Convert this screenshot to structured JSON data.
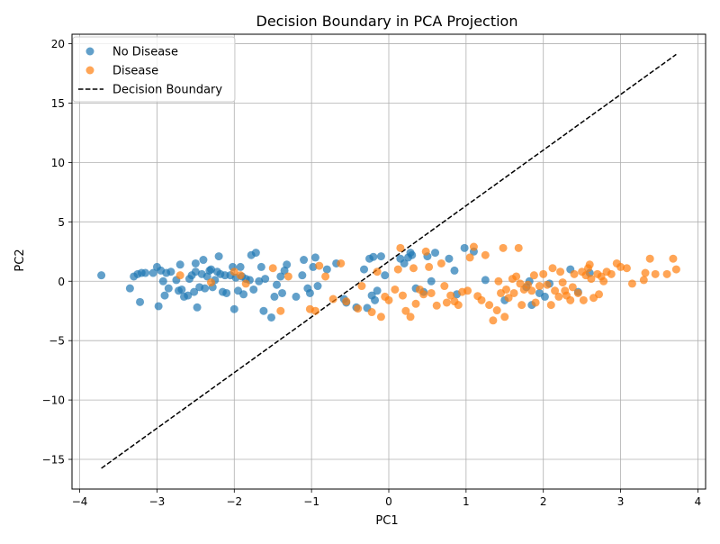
{
  "chart_data": {
    "type": "scatter",
    "title": "Decision Boundary in PCA Projection",
    "xlabel": "PC1",
    "ylabel": "PC2",
    "xlim": [
      -4.1,
      4.1
    ],
    "ylim": [
      -17.5,
      20.8
    ],
    "xticks": [
      -4,
      -3,
      -2,
      -1,
      0,
      1,
      2,
      3,
      4
    ],
    "yticks": [
      -15,
      -10,
      -5,
      0,
      5,
      10,
      15,
      20
    ],
    "grid": true,
    "legend_position": "top-left",
    "series": [
      {
        "name": "No Disease",
        "color": "#1f77b4",
        "points": [
          [
            -3.72,
            0.5
          ],
          [
            -3.35,
            -0.6
          ],
          [
            -3.3,
            0.4
          ],
          [
            -3.25,
            0.6
          ],
          [
            -3.22,
            -1.75
          ],
          [
            -3.2,
            0.7
          ],
          [
            -3.15,
            0.7
          ],
          [
            -3.05,
            0.7
          ],
          [
            -3.0,
            1.2
          ],
          [
            -2.98,
            -2.1
          ],
          [
            -2.95,
            0.9
          ],
          [
            -2.92,
            0.0
          ],
          [
            -2.9,
            -1.2
          ],
          [
            -2.88,
            0.7
          ],
          [
            -2.85,
            -0.6
          ],
          [
            -2.82,
            0.8
          ],
          [
            -2.75,
            0.1
          ],
          [
            -2.72,
            -0.8
          ],
          [
            -2.7,
            1.4
          ],
          [
            -2.68,
            -0.7
          ],
          [
            -2.65,
            -1.3
          ],
          [
            -2.6,
            -1.2
          ],
          [
            -2.58,
            0.2
          ],
          [
            -2.55,
            0.5
          ],
          [
            -2.52,
            -0.9
          ],
          [
            -2.5,
            0.8
          ],
          [
            -2.5,
            1.5
          ],
          [
            -2.48,
            -2.2
          ],
          [
            -2.45,
            -0.5
          ],
          [
            -2.42,
            0.6
          ],
          [
            -2.4,
            1.8
          ],
          [
            -2.38,
            -0.6
          ],
          [
            -2.35,
            0.4
          ],
          [
            -2.32,
            0.9
          ],
          [
            -2.3,
            1.0
          ],
          [
            -2.28,
            -0.5
          ],
          [
            -2.25,
            0.1
          ],
          [
            -2.22,
            0.8
          ],
          [
            -2.2,
            2.1
          ],
          [
            -2.18,
            0.6
          ],
          [
            -2.15,
            -0.9
          ],
          [
            -2.12,
            0.5
          ],
          [
            -2.1,
            -1.0
          ],
          [
            -2.05,
            0.5
          ],
          [
            -2.02,
            1.2
          ],
          [
            -2.0,
            -2.35
          ],
          [
            -1.98,
            0.3
          ],
          [
            -1.95,
            -0.8
          ],
          [
            -1.92,
            1.2
          ],
          [
            -1.9,
            0.4
          ],
          [
            -1.88,
            -1.1
          ],
          [
            -1.85,
            0.2
          ],
          [
            -1.8,
            0.1
          ],
          [
            -1.78,
            2.2
          ],
          [
            -1.75,
            -0.7
          ],
          [
            -1.72,
            2.4
          ],
          [
            -1.68,
            0.0
          ],
          [
            -1.65,
            1.2
          ],
          [
            -1.62,
            -2.5
          ],
          [
            -1.6,
            0.2
          ],
          [
            -1.52,
            -3.05
          ],
          [
            -1.48,
            -1.3
          ],
          [
            -1.45,
            -0.3
          ],
          [
            -1.4,
            0.4
          ],
          [
            -1.38,
            -1.0
          ],
          [
            -1.35,
            0.9
          ],
          [
            -1.32,
            1.4
          ],
          [
            -1.2,
            -1.3
          ],
          [
            -1.12,
            0.5
          ],
          [
            -1.1,
            1.8
          ],
          [
            -1.05,
            -0.6
          ],
          [
            -1.02,
            -1.0
          ],
          [
            -0.98,
            1.2
          ],
          [
            -0.95,
            2.0
          ],
          [
            -0.92,
            -0.4
          ],
          [
            -0.8,
            1.0
          ],
          [
            -0.68,
            1.5
          ],
          [
            -0.58,
            -1.5
          ],
          [
            -0.55,
            -1.8
          ],
          [
            -0.42,
            -2.2
          ],
          [
            -0.32,
            1.0
          ],
          [
            -0.28,
            -2.25
          ],
          [
            -0.25,
            1.9
          ],
          [
            -0.22,
            -1.2
          ],
          [
            -0.2,
            2.05
          ],
          [
            -0.18,
            -1.6
          ],
          [
            -0.15,
            -0.8
          ],
          [
            -0.1,
            2.1
          ],
          [
            -0.05,
            0.5
          ],
          [
            0.15,
            1.9
          ],
          [
            0.2,
            1.5
          ],
          [
            0.25,
            2.0
          ],
          [
            0.28,
            2.4
          ],
          [
            0.3,
            2.2
          ],
          [
            0.35,
            -0.6
          ],
          [
            0.45,
            -0.9
          ],
          [
            0.5,
            2.1
          ],
          [
            0.55,
            0.0
          ],
          [
            0.6,
            2.4
          ],
          [
            0.78,
            1.9
          ],
          [
            0.85,
            0.9
          ],
          [
            0.88,
            -1.1
          ],
          [
            0.98,
            2.8
          ],
          [
            1.1,
            2.5
          ],
          [
            1.25,
            0.1
          ],
          [
            1.5,
            -1.6
          ],
          [
            1.78,
            -0.5
          ],
          [
            1.82,
            0.0
          ],
          [
            1.85,
            -2.0
          ],
          [
            1.95,
            -1.0
          ],
          [
            2.02,
            -1.3
          ],
          [
            2.08,
            -0.2
          ],
          [
            2.35,
            1.0
          ],
          [
            2.45,
            -0.9
          ],
          [
            2.6,
            0.7
          ]
        ]
      },
      {
        "name": "Disease",
        "color": "#ff7f0e",
        "points": [
          [
            -2.7,
            0.5
          ],
          [
            -2.3,
            -0.1
          ],
          [
            -2.0,
            0.8
          ],
          [
            -1.92,
            0.5
          ],
          [
            -1.85,
            -0.2
          ],
          [
            -1.5,
            1.1
          ],
          [
            -1.4,
            -2.5
          ],
          [
            -1.3,
            0.4
          ],
          [
            -1.02,
            -2.35
          ],
          [
            -0.95,
            -2.5
          ],
          [
            -0.9,
            1.3
          ],
          [
            -0.82,
            0.4
          ],
          [
            -0.72,
            -1.5
          ],
          [
            -0.62,
            1.5
          ],
          [
            -0.55,
            -1.7
          ],
          [
            -0.4,
            -2.3
          ],
          [
            -0.35,
            -0.4
          ],
          [
            -0.22,
            -2.6
          ],
          [
            -0.15,
            0.8
          ],
          [
            -0.1,
            -3.0
          ],
          [
            -0.05,
            -1.3
          ],
          [
            0.0,
            -1.6
          ],
          [
            0.08,
            -0.7
          ],
          [
            0.12,
            1.0
          ],
          [
            0.15,
            2.8
          ],
          [
            0.18,
            -1.2
          ],
          [
            0.22,
            -2.5
          ],
          [
            0.28,
            -3.0
          ],
          [
            0.32,
            1.1
          ],
          [
            0.35,
            -1.9
          ],
          [
            0.4,
            -0.7
          ],
          [
            0.45,
            -1.1
          ],
          [
            0.48,
            2.5
          ],
          [
            0.52,
            1.2
          ],
          [
            0.55,
            -1.0
          ],
          [
            0.62,
            -2.05
          ],
          [
            0.68,
            1.5
          ],
          [
            0.72,
            -0.4
          ],
          [
            0.75,
            -1.8
          ],
          [
            0.8,
            -1.2
          ],
          [
            0.85,
            -1.7
          ],
          [
            0.9,
            -2.0
          ],
          [
            0.95,
            -0.9
          ],
          [
            1.02,
            -0.8
          ],
          [
            1.05,
            2.0
          ],
          [
            1.1,
            2.9
          ],
          [
            1.15,
            -1.25
          ],
          [
            1.2,
            -1.6
          ],
          [
            1.25,
            2.2
          ],
          [
            1.3,
            -2.0
          ],
          [
            1.35,
            -3.3
          ],
          [
            1.4,
            -2.45
          ],
          [
            1.42,
            0.0
          ],
          [
            1.45,
            -1.0
          ],
          [
            1.48,
            2.8
          ],
          [
            1.5,
            -3.0
          ],
          [
            1.52,
            -0.7
          ],
          [
            1.55,
            -1.4
          ],
          [
            1.6,
            0.2
          ],
          [
            1.62,
            -1.0
          ],
          [
            1.65,
            0.4
          ],
          [
            1.68,
            2.8
          ],
          [
            1.7,
            -0.2
          ],
          [
            1.72,
            -2.0
          ],
          [
            1.75,
            -0.7
          ],
          [
            1.8,
            -0.3
          ],
          [
            1.85,
            -0.8
          ],
          [
            1.88,
            0.5
          ],
          [
            1.9,
            -1.8
          ],
          [
            1.95,
            -0.4
          ],
          [
            2.0,
            0.6
          ],
          [
            2.05,
            -0.3
          ],
          [
            2.1,
            -2.0
          ],
          [
            2.12,
            1.1
          ],
          [
            2.15,
            -0.8
          ],
          [
            2.2,
            -1.3
          ],
          [
            2.22,
            0.8
          ],
          [
            2.25,
            -0.1
          ],
          [
            2.28,
            -0.8
          ],
          [
            2.3,
            -1.2
          ],
          [
            2.35,
            -1.6
          ],
          [
            2.38,
            -0.5
          ],
          [
            2.4,
            0.6
          ],
          [
            2.45,
            -1.0
          ],
          [
            2.5,
            0.8
          ],
          [
            2.52,
            -1.6
          ],
          [
            2.55,
            0.5
          ],
          [
            2.58,
            1.1
          ],
          [
            2.6,
            1.4
          ],
          [
            2.62,
            0.2
          ],
          [
            2.65,
            -1.4
          ],
          [
            2.7,
            0.6
          ],
          [
            2.72,
            -1.1
          ],
          [
            2.75,
            0.4
          ],
          [
            2.78,
            0.0
          ],
          [
            2.82,
            0.8
          ],
          [
            2.88,
            0.6
          ],
          [
            2.95,
            1.5
          ],
          [
            3.0,
            1.2
          ],
          [
            3.08,
            1.1
          ],
          [
            3.15,
            -0.2
          ],
          [
            3.3,
            0.1
          ],
          [
            3.32,
            0.7
          ],
          [
            3.38,
            1.9
          ],
          [
            3.45,
            0.6
          ],
          [
            3.6,
            0.6
          ],
          [
            3.68,
            1.9
          ],
          [
            3.72,
            1.0
          ]
        ]
      }
    ],
    "line": {
      "name": "Decision Boundary",
      "color": "#000000",
      "style": "dashed",
      "points": [
        [
          -3.72,
          -15.75
        ],
        [
          3.72,
          19.1
        ]
      ]
    }
  }
}
